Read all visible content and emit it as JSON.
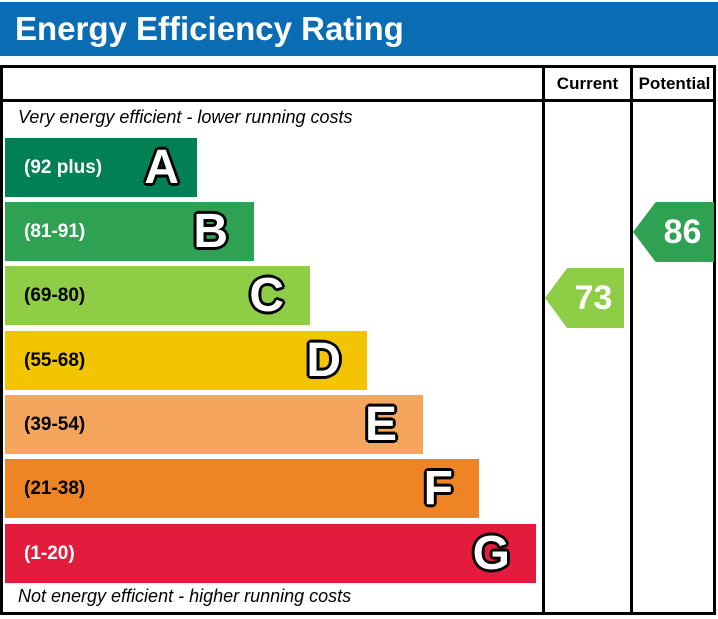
{
  "title": "Energy Efficiency Rating",
  "colors": {
    "title_bar": "#0a6db4",
    "table_border": "#000000",
    "current_arrow": "#8dce46",
    "potential_arrow": "#2ea152"
  },
  "header": {
    "current_label": "Current",
    "potential_label": "Potential"
  },
  "notes": {
    "top": "Very energy efficient - lower running costs",
    "bottom": "Not energy efficient - higher running costs"
  },
  "chart_data": {
    "type": "bar",
    "title": "Energy Efficiency Rating",
    "orientation": "horizontal",
    "bands": [
      {
        "letter": "A",
        "range_label": "(92 plus)",
        "range_min": 92,
        "range_max": 100,
        "color": "#008054",
        "label_text_color": "white"
      },
      {
        "letter": "B",
        "range_label": "(81-91)",
        "range_min": 81,
        "range_max": 91,
        "color": "#2ea152",
        "label_text_color": "white"
      },
      {
        "letter": "C",
        "range_label": "(69-80)",
        "range_min": 69,
        "range_max": 80,
        "color": "#8dce46",
        "label_text_color": "black"
      },
      {
        "letter": "D",
        "range_label": "(55-68)",
        "range_min": 55,
        "range_max": 68,
        "color": "#f2c500",
        "label_text_color": "black"
      },
      {
        "letter": "E",
        "range_label": "(39-54)",
        "range_min": 39,
        "range_max": 54,
        "color": "#f5a65c",
        "label_text_color": "black"
      },
      {
        "letter": "F",
        "range_label": "(21-38)",
        "range_min": 21,
        "range_max": 38,
        "color": "#ee8424",
        "label_text_color": "black"
      },
      {
        "letter": "G",
        "range_label": "(1-20)",
        "range_min": 1,
        "range_max": 20,
        "color": "#e31c3d",
        "label_text_color": "white"
      }
    ],
    "current": {
      "value": 73,
      "band": "C",
      "color": "#8dce46"
    },
    "potential": {
      "value": 86,
      "band": "B",
      "color": "#2ea152"
    }
  }
}
